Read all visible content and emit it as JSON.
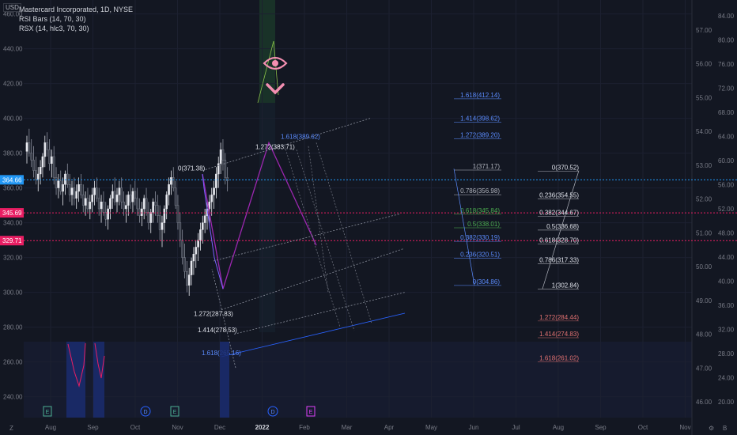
{
  "header": {
    "currency": "USD",
    "symbol_line": "Mastercard Incorporated, 1D, NYSE",
    "indicator_1": "RSI Bars (14, 70, 30)",
    "indicator_2": "RSX (14, hlc3, 70, 30)"
  },
  "colors": {
    "background": "#131722",
    "up": "#e6e8ee",
    "down": "#3a3f4b",
    "accent_purple": "#9c27b0",
    "fib_blue": "#2962ff",
    "pink": "#e91e63",
    "price_line_blue": "#2196f3"
  },
  "chart_data": {
    "type": "candlestick",
    "x_ticks": [
      "Aug",
      "Sep",
      "Oct",
      "Nov",
      "Dec",
      "2022",
      "Feb",
      "Mar",
      "Apr",
      "May",
      "Jun",
      "Jul",
      "Aug",
      "Sep",
      "Oct",
      "Nov"
    ],
    "y_left_ticks": [
      460.0,
      440.0,
      420.0,
      400.0,
      380.0,
      360.0,
      340.0,
      320.0,
      300.0,
      280.0,
      260.0,
      240.0
    ],
    "y_left_range": [
      228,
      468
    ],
    "y_right1_ticks": [
      57.0,
      56.0,
      55.0,
      54.0,
      53.0,
      52.0,
      51.0,
      50.0,
      49.0,
      48.0,
      47.0,
      46.0
    ],
    "y_right2_ticks": [
      84.0,
      80.0,
      76.0,
      72.0,
      68.0,
      64.0,
      60.0,
      56.0,
      52.0,
      48.0,
      44.0,
      40.0,
      36.0,
      32.0,
      28.0,
      24.0,
      20.0
    ],
    "price_badges": [
      {
        "label": "364.66",
        "value": 364.66,
        "style": "blue"
      },
      {
        "label": "345.69",
        "value": 345.69,
        "style": "pink"
      },
      {
        "label": "329.71",
        "value": 329.71,
        "style": "pink"
      }
    ],
    "candles": [
      [
        381,
        390,
        374,
        386
      ],
      [
        386,
        394,
        378,
        380
      ],
      [
        380,
        388,
        372,
        376
      ],
      [
        376,
        384,
        366,
        370
      ],
      [
        370,
        378,
        362,
        365
      ],
      [
        365,
        372,
        358,
        368
      ],
      [
        368,
        376,
        362,
        372
      ],
      [
        372,
        380,
        366,
        378
      ],
      [
        378,
        390,
        372,
        386
      ],
      [
        386,
        392,
        378,
        382
      ],
      [
        382,
        388,
        370,
        374
      ],
      [
        374,
        382,
        366,
        378
      ],
      [
        378,
        384,
        362,
        366
      ],
      [
        366,
        372,
        356,
        360
      ],
      [
        360,
        368,
        354,
        364
      ],
      [
        364,
        370,
        356,
        358
      ],
      [
        358,
        366,
        350,
        362
      ],
      [
        362,
        370,
        356,
        368
      ],
      [
        368,
        374,
        360,
        362
      ],
      [
        362,
        368,
        352,
        356
      ],
      [
        356,
        364,
        350,
        360
      ],
      [
        360,
        366,
        350,
        354
      ],
      [
        354,
        362,
        348,
        358
      ],
      [
        358,
        366,
        352,
        362
      ],
      [
        362,
        368,
        354,
        356
      ],
      [
        356,
        362,
        346,
        350
      ],
      [
        350,
        358,
        344,
        354
      ],
      [
        354,
        360,
        346,
        348
      ],
      [
        348,
        356,
        342,
        352
      ],
      [
        352,
        360,
        346,
        356
      ],
      [
        356,
        364,
        350,
        360
      ],
      [
        360,
        366,
        352,
        354
      ],
      [
        354,
        360,
        344,
        348
      ],
      [
        348,
        356,
        340,
        352
      ],
      [
        352,
        358,
        344,
        346
      ],
      [
        346,
        352,
        338,
        342
      ],
      [
        342,
        350,
        336,
        348
      ],
      [
        348,
        356,
        342,
        354
      ],
      [
        354,
        362,
        348,
        358
      ],
      [
        358,
        366,
        350,
        352
      ],
      [
        352,
        360,
        346,
        356
      ],
      [
        356,
        364,
        350,
        360
      ],
      [
        360,
        366,
        348,
        352
      ],
      [
        352,
        358,
        344,
        348
      ],
      [
        348,
        356,
        340,
        350
      ],
      [
        350,
        358,
        344,
        356
      ],
      [
        356,
        362,
        348,
        352
      ],
      [
        352,
        360,
        346,
        358
      ],
      [
        358,
        364,
        350,
        354
      ],
      [
        354,
        360,
        344,
        348
      ],
      [
        348,
        354,
        340,
        344
      ],
      [
        344,
        352,
        338,
        348
      ],
      [
        348,
        356,
        342,
        354
      ],
      [
        354,
        360,
        344,
        346
      ],
      [
        346,
        352,
        336,
        340
      ],
      [
        340,
        348,
        334,
        346
      ],
      [
        346,
        354,
        340,
        352
      ],
      [
        352,
        358,
        344,
        350
      ],
      [
        350,
        356,
        340,
        344
      ],
      [
        344,
        350,
        330,
        336
      ],
      [
        336,
        344,
        326,
        340
      ],
      [
        340,
        350,
        334,
        348
      ],
      [
        348,
        358,
        342,
        356
      ],
      [
        356,
        366,
        350,
        362
      ],
      [
        362,
        370,
        356,
        366
      ],
      [
        366,
        372,
        358,
        360
      ],
      [
        360,
        364,
        348,
        350
      ],
      [
        350,
        356,
        336,
        340
      ],
      [
        340,
        346,
        326,
        330
      ],
      [
        330,
        336,
        316,
        320
      ],
      [
        320,
        328,
        308,
        312
      ],
      [
        312,
        318,
        300,
        304
      ],
      [
        304,
        314,
        298,
        310
      ],
      [
        310,
        320,
        304,
        318
      ],
      [
        318,
        326,
        310,
        322
      ],
      [
        322,
        330,
        314,
        326
      ],
      [
        326,
        334,
        318,
        330
      ],
      [
        330,
        340,
        324,
        336
      ],
      [
        336,
        344,
        328,
        340
      ],
      [
        340,
        348,
        334,
        344
      ],
      [
        344,
        352,
        336,
        348
      ],
      [
        348,
        356,
        340,
        352
      ],
      [
        352,
        360,
        344,
        356
      ],
      [
        356,
        364,
        348,
        360
      ],
      [
        360,
        372,
        354,
        368
      ],
      [
        368,
        378,
        360,
        374
      ],
      [
        374,
        386,
        368,
        382
      ],
      [
        382,
        388,
        370,
        376
      ],
      [
        376,
        380,
        362,
        366
      ],
      [
        366,
        372,
        358,
        364
      ]
    ],
    "fib_levels": [
      {
        "label": "1.618(412.14)",
        "value": 412.14
      },
      {
        "label": "1.414(398.62)",
        "value": 398.62
      },
      {
        "label": "1.272(389.20)",
        "value": 389.2
      },
      {
        "label": "1(371.17)",
        "value": 371.17
      },
      {
        "label": "0.786(356.98)",
        "value": 356.98
      },
      {
        "label": "0.618(345.84)",
        "value": 345.84
      },
      {
        "label": "0.5(338.01)",
        "value": 338.01
      },
      {
        "label": "0.382(330.19)",
        "value": 330.19
      },
      {
        "label": "0.236(320.51)",
        "value": 320.51
      },
      {
        "label": "0(304.86)",
        "value": 304.86
      }
    ],
    "fib_levels_right": [
      {
        "label": "0(370.52)",
        "value": 370.52
      },
      {
        "label": "0.236(354.55)",
        "value": 354.55
      },
      {
        "label": "0.382(344.67)",
        "value": 344.67
      },
      {
        "label": "0.5(336.68)",
        "value": 336.68
      },
      {
        "label": "0.618(328.70)",
        "value": 328.7
      },
      {
        "label": "0.786(317.33)",
        "value": 317.33
      },
      {
        "label": "1(302.84)",
        "value": 302.84
      },
      {
        "label": "1.272(284.44)",
        "value": 284.44
      },
      {
        "label": "1.414(274.83)",
        "value": 274.83
      },
      {
        "label": "1.618(261.02)",
        "value": 261.02
      }
    ],
    "ext_labels": [
      {
        "label": "0(371.38)",
        "value": 371.38
      },
      {
        "label": "1.272(383.71)",
        "value": 383.71
      },
      {
        "label": "1.618(389.62)",
        "value": 389.62
      },
      {
        "label": "1.272(287.83)",
        "value": 287.83
      },
      {
        "label": "1.414(278.53)",
        "value": 278.53
      },
      {
        "label": "1.618(265.16)",
        "value": 265.16
      }
    ],
    "event_markers": [
      {
        "label": "E",
        "category": "Aug"
      },
      {
        "label": "D",
        "category": "Oct"
      },
      {
        "label": "E",
        "category": "Nov"
      },
      {
        "label": "D",
        "category": "2022"
      },
      {
        "label": "E",
        "category": "2022"
      }
    ]
  }
}
